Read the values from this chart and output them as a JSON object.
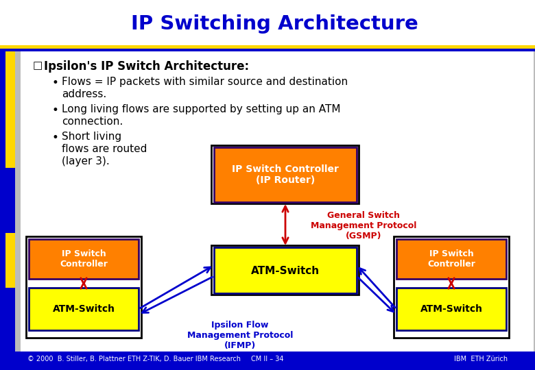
{
  "title": "IP Switching Architecture",
  "title_color": "#0000CC",
  "bg_color": "#CCCCCC",
  "header_bg": "#FFFFFF",
  "slide_bg": "#FFFFFF",
  "bullet_header": "Ipsilon's IP Switch Architecture:",
  "bullet1_line1": "Flows = IP packets with similar source and destination",
  "bullet1_line2": "address.",
  "bullet2_line1": "Long living flows are supported by setting up an ATM",
  "bullet2_line2": "connection.",
  "bullet3_line1": "Short living",
  "bullet3_line2": "flows are routed",
  "bullet3_line3": "(layer 3).",
  "box_center_top_label": "IP Switch Controller\n(IP Router)",
  "box_center_mid_label": "ATM-Switch",
  "gsmp_label": "General Switch\nManagement Protocol\n(GSMP)",
  "ifmp_label": "Ipsilon Flow\nManagement Protocol\n(IFMP)",
  "left_controller_label": "IP Switch\nController",
  "left_atm_label": "ATM-Switch",
  "right_controller_label": "IP Switch\nController",
  "right_atm_label": "ATM-Switch",
  "footer_left": "© 2000  B. Stiller, B. Plattner ETH Z-TIK, D. Bauer IBM Research",
  "footer_center": "CM II – 34",
  "orange_color": "#FF8000",
  "yellow_color": "#FFFF00",
  "blue_line_color": "#0000CC",
  "red_arrow_color": "#CC0000",
  "red_label_color": "#CC0000",
  "blue_label_color": "#0000CC",
  "gold_color": "#FFD700",
  "left_bar_blue": "#0000CC",
  "left_bar_yellow": "#FFD700"
}
